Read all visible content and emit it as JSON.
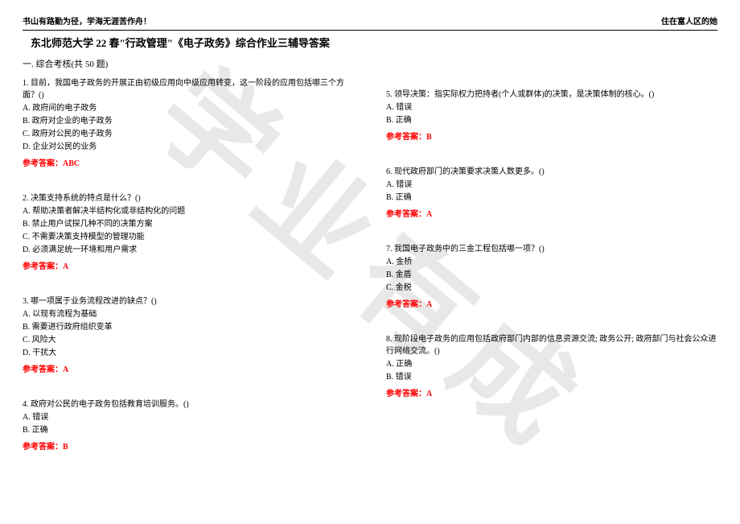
{
  "header": {
    "left": "书山有路勤为径，学海无涯苦作舟！",
    "right": "住在富人区的她"
  },
  "title": "东北师范大学 22 春\"行政管理\"《电子政务》综合作业三辅导答案",
  "section": "一. 综合考核(共 50 题)",
  "watermark": "学业有成",
  "answer_label": "参考答案：",
  "questions_left": [
    {
      "text": "1. 目前，我国电子政务的开展正由初级应用向中级应用转变，这一阶段的应用包括哪三个方面？()",
      "options": [
        "A. 政府间的电子政务",
        "B. 政府对企业的电子政务",
        "C. 政府对公民的电子政务",
        "D. 企业对公民的业务"
      ],
      "answer": "ABC"
    },
    {
      "text": "2. 决策支持系统的特点是什么？()",
      "options": [
        "A. 帮助决策者解决半结构化或非结构化的问题",
        "B. 禁止用户试探几种不同的决策方案",
        "C. 不需要决策支持模型的管理功能",
        "D. 必须满足统一环境和用户需求"
      ],
      "answer": "A"
    },
    {
      "text": "3. 哪一项属于业务流程改进的缺点？()",
      "options": [
        "A. 以现有流程为基础",
        "B. 需要进行政府组织变革",
        "C. 风险大",
        "D. 干扰大"
      ],
      "answer": "A"
    },
    {
      "text": "4. 政府对公民的电子政务包括教育培训服务。()",
      "options": [
        "A. 错误",
        "B. 正确"
      ],
      "answer": "B"
    }
  ],
  "questions_right": [
    {
      "text": "5. 领导决策：指实际权力把持者(个人或群体)的决策，是决策体制的核心。()",
      "options": [
        "A. 错误",
        "B. 正确"
      ],
      "answer": "B"
    },
    {
      "text": "6. 现代政府部门的决策要求决策人数更多。()",
      "options": [
        "A. 错误",
        "B. 正确"
      ],
      "answer": "A"
    },
    {
      "text": "7. 我国电子政务中的三金工程包括哪一项？()",
      "options": [
        "A. 金桥",
        "B. 金盾",
        "C. 金税"
      ],
      "answer": "A"
    },
    {
      "text": "8. 现阶段电子政务的应用包括政府部门内部的信息资源交流; 政务公开; 政府部门与社会公众进行网络交流。()",
      "options": [
        "A. 正确",
        "B. 错误"
      ],
      "answer": "A"
    }
  ]
}
